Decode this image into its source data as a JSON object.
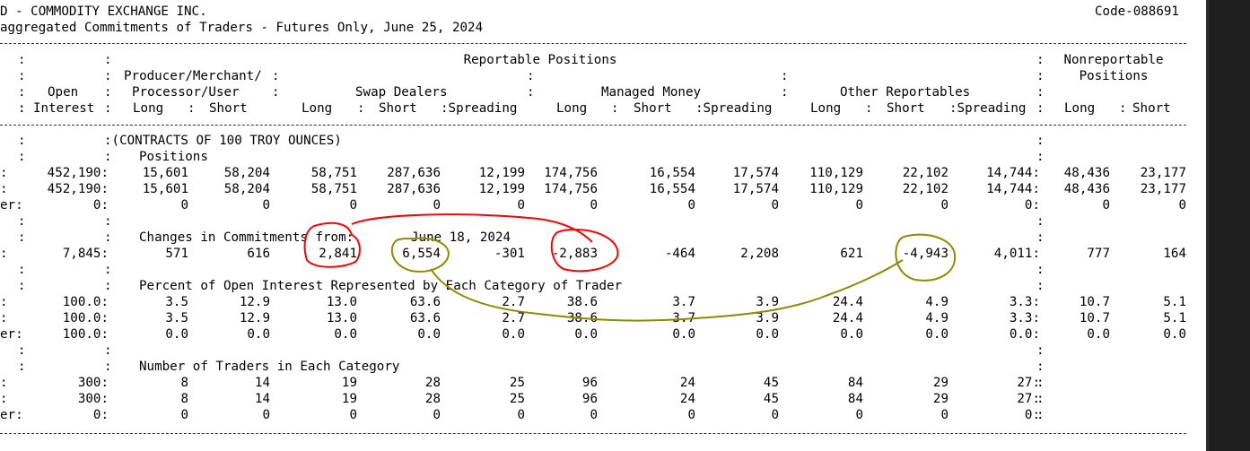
{
  "title_line1": "D - COMMODITY EXCHANGE INC.",
  "code": "Code-088691",
  "title_line2": "aggregated Commitments of Traders - Futures Only, June 25, 2024",
  "headers": {
    "reportable_positions": "Reportable Positions",
    "nonreportable": "Nonreportable",
    "positions": "Positions",
    "open": "Open",
    "interest": "Interest",
    "producer1": "Producer/Merchant/",
    "producer2": "Processor/User",
    "swap": "Swap Dealers",
    "managed": "Managed Money",
    "other": "Other Reportables",
    "long": "Long",
    "short": "Short",
    "spreading": "Spreading"
  },
  "sections": {
    "contracts": "(CONTRACTS OF 100 TROY OUNCES)",
    "positions": "Positions",
    "changes": "Changes in Commitments from:",
    "changes_date": "June 18, 2024",
    "percent": "Percent of Open Interest Represented by Each Category of Trader",
    "traders": "Number of Traders in Each Category"
  },
  "row_labels": {
    "all": ":",
    "old": ":",
    "other": "er:"
  },
  "rows": {
    "pos_all": [
      "452,190:",
      "15,601",
      "58,204",
      "58,751",
      "287,636",
      "12,199",
      "174,756",
      "16,554",
      "17,574",
      "110,129",
      "22,102",
      "14,744:",
      "48,436",
      "23,177"
    ],
    "pos_old": [
      "452,190:",
      "15,601",
      "58,204",
      "58,751",
      "287,636",
      "12,199",
      "174,756",
      "16,554",
      "17,574",
      "110,129",
      "22,102",
      "14,744:",
      "48,436",
      "23,177"
    ],
    "pos_other": [
      "0:",
      "0",
      "0",
      "0",
      "0",
      "0",
      "0",
      "0",
      "0",
      "0",
      "0",
      "0:",
      "0",
      "0"
    ],
    "chg": [
      "7,845:",
      "571",
      "616",
      "2,841",
      "6,554",
      "-301",
      "-2,883",
      "-464",
      "2,208",
      "621",
      "-4,943",
      "4,011:",
      "777",
      "164"
    ],
    "pct_all": [
      "100.0:",
      "3.5",
      "12.9",
      "13.0",
      "63.6",
      "2.7",
      "38.6",
      "3.7",
      "3.9",
      "24.4",
      "4.9",
      "3.3:",
      "10.7",
      "5.1"
    ],
    "pct_old": [
      "100.0:",
      "3.5",
      "12.9",
      "13.0",
      "63.6",
      "2.7",
      "38.6",
      "3.7",
      "3.9",
      "24.4",
      "4.9",
      "3.3:",
      "10.7",
      "5.1"
    ],
    "pct_other": [
      "100.0:",
      "0.0",
      "0.0",
      "0.0",
      "0.0",
      "0.0",
      "0.0",
      "0.0",
      "0.0",
      "0.0",
      "0.0",
      "0.0:",
      "0.0",
      "0.0"
    ],
    "trd_all": [
      "300:",
      "8",
      "14",
      "19",
      "28",
      "25",
      "96",
      "24",
      "45",
      "84",
      "29",
      "27:",
      "",
      ""
    ],
    "trd_old": [
      "300:",
      "8",
      "14",
      "19",
      "28",
      "25",
      "96",
      "24",
      "45",
      "84",
      "29",
      "27:",
      "",
      ""
    ],
    "trd_other": [
      "0:",
      "0",
      "0",
      "0",
      "0",
      "0",
      "0",
      "0",
      "0",
      "0",
      "0",
      "0:",
      "",
      ""
    ]
  },
  "colors": {
    "annotation_red": "#ff0000",
    "annotation_olive": "#8b8b00",
    "scrollbar": "#1e1e1e"
  }
}
